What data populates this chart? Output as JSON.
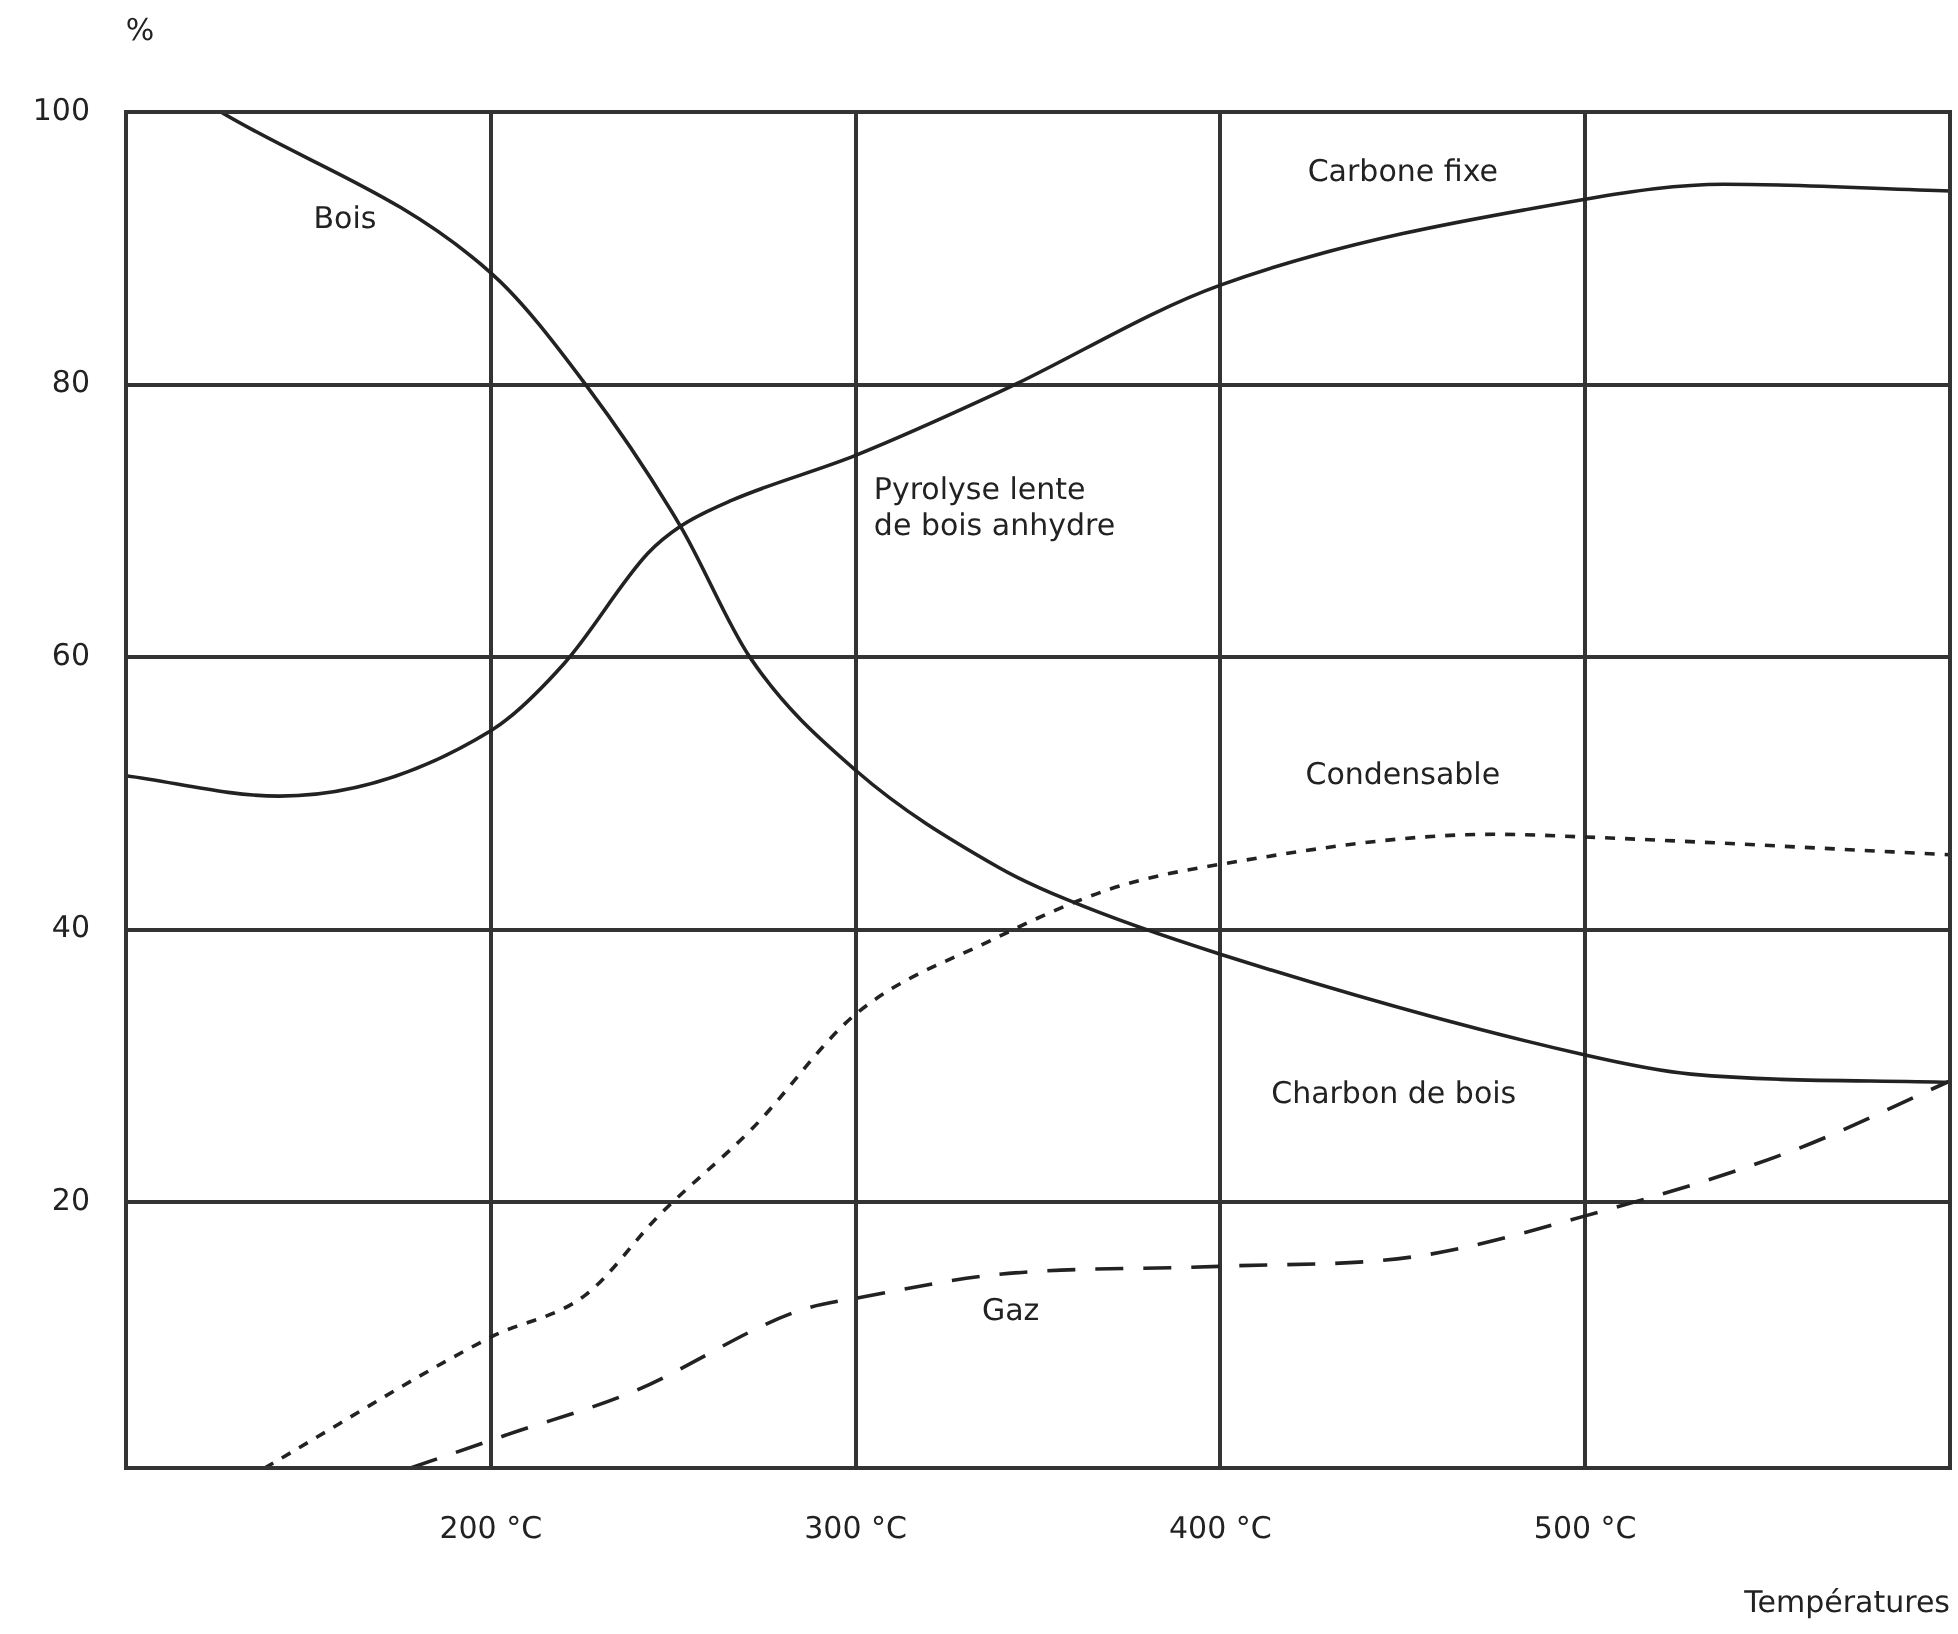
{
  "chart_data": {
    "type": "line",
    "xlabel": "Températures",
    "ylabel": "%",
    "xlim": [
      100,
      600
    ],
    "ylim": [
      0.5,
      100
    ],
    "xticks": [
      {
        "value": 200,
        "label": "200 °C"
      },
      {
        "value": 300,
        "label": "300 °C"
      },
      {
        "value": 400,
        "label": "400 °C"
      },
      {
        "value": 500,
        "label": "500 °C"
      }
    ],
    "yticks": [
      20,
      40,
      60,
      80,
      100
    ],
    "grid": true,
    "marker": "none",
    "series": [
      {
        "color": "#222222",
        "line_style": "solid",
        "x": [
          126,
          200,
          226,
          252,
          271,
          300,
          339,
          358,
          400,
          500,
          529,
          600
        ],
        "values": [
          100,
          88.2,
          80,
          69.6,
          60,
          51.7,
          44.6,
          42.2,
          38.2,
          30.8,
          29.4,
          28.8
        ]
      },
      {
        "color": "#222222",
        "line_style": "solid",
        "x": [
          100,
          142,
          200,
          220,
          243,
          252,
          266,
          300,
          339,
          400,
          500,
          538,
          600
        ],
        "values": [
          51.3,
          49.8,
          54.6,
          59.5,
          67.6,
          69.6,
          71.5,
          74.8,
          79.4,
          87.3,
          93.6,
          94.7,
          94.2
        ]
      },
      {
        "color": "#222222",
        "line_style": "dotted",
        "x": [
          138,
          200,
          226,
          246,
          272,
          300,
          337,
          370,
          400,
          475,
          500,
          600
        ],
        "values": [
          0.5,
          10.1,
          13.2,
          19,
          25.5,
          33.8,
          39.2,
          43,
          44.8,
          47,
          46.8,
          45.5
        ]
      },
      {
        "color": "#222222",
        "line_style": "dashed",
        "x": [
          178,
          204,
          239,
          284,
          303,
          339,
          400,
          453,
          500,
          557,
          600
        ],
        "values": [
          0.5,
          2.9,
          6.1,
          12,
          13.1,
          14.7,
          15.3,
          16,
          19,
          23.8,
          28.9
        ]
      }
    ],
    "annotations": [
      "Bois",
      "Carbone fixe",
      "Pyrolyse lente\nde bois anhydre",
      "Condensable",
      "Charbon de bois",
      "Gaz"
    ]
  }
}
